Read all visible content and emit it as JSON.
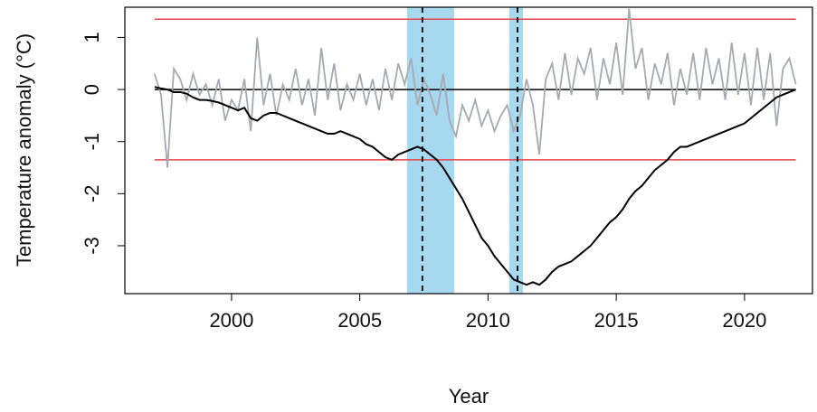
{
  "chart_data": {
    "type": "line",
    "x_label": "Year",
    "y_label": "Temperature anomaly (°C)",
    "xlim": [
      1995.84,
      2022.65
    ],
    "ylim": [
      -3.92,
      1.58
    ],
    "xticks": [
      2000,
      2005,
      2010,
      2015,
      2020
    ],
    "yticks": [
      -3,
      -2,
      -1,
      0,
      1
    ],
    "x": [
      1997,
      1997.25,
      1997.5,
      1997.75,
      1998,
      1998.25,
      1998.5,
      1998.75,
      1999,
      1999.25,
      1999.5,
      1999.75,
      2000,
      2000.25,
      2000.5,
      2000.75,
      2001,
      2001.25,
      2001.5,
      2001.75,
      2002,
      2002.25,
      2002.5,
      2002.75,
      2003,
      2003.25,
      2003.5,
      2003.75,
      2004,
      2004.25,
      2004.5,
      2004.75,
      2005,
      2005.25,
      2005.5,
      2005.75,
      2006,
      2006.25,
      2006.5,
      2006.75,
      2007,
      2007.25,
      2007.5,
      2007.75,
      2008,
      2008.25,
      2008.5,
      2008.75,
      2009,
      2009.25,
      2009.5,
      2009.75,
      2010,
      2010.25,
      2010.5,
      2010.75,
      2011,
      2011.25,
      2011.5,
      2011.75,
      2012,
      2012.25,
      2012.5,
      2012.75,
      2013,
      2013.25,
      2013.5,
      2013.75,
      2014,
      2014.25,
      2014.5,
      2014.75,
      2015,
      2015.25,
      2015.5,
      2015.75,
      2016,
      2016.25,
      2016.5,
      2016.75,
      2017,
      2017.25,
      2017.5,
      2017.75,
      2018,
      2018.25,
      2018.5,
      2018.75,
      2019,
      2019.25,
      2019.5,
      2019.75,
      2020,
      2020.25,
      2020.5,
      2020.75,
      2021,
      2021.25,
      2021.5,
      2021.75,
      2022
    ],
    "spans": [
      {
        "start": 2006.84,
        "end": 2008.68,
        "color": "#a6d8f0"
      },
      {
        "start": 2010.83,
        "end": 2011.36,
        "color": "#a6d8f0"
      }
    ],
    "vlines": [
      {
        "value": 2007.44,
        "color": "#000000"
      },
      {
        "value": 2011.15,
        "color": "#000000"
      }
    ],
    "hlines": [
      {
        "value": 1.35,
        "color": "#e8434a"
      },
      {
        "value": -1.35,
        "color": "#e8434a"
      },
      {
        "value": 0,
        "color": "#000000"
      }
    ],
    "series": [
      {
        "color": "#a7a9b0",
        "values": [
          0.3,
          -0.1,
          -1.5,
          0.4,
          0.2,
          -0.2,
          0.3,
          -0.1,
          0.1,
          -0.3,
          0.2,
          -0.6,
          -0.2,
          -0.4,
          0.2,
          -0.8,
          1.0,
          -0.3,
          0.3,
          -0.5,
          0.1,
          -0.2,
          0.4,
          -0.3,
          0.2,
          -0.5,
          0.8,
          -0.2,
          0.5,
          -0.4,
          0.1,
          -0.2,
          0.3,
          -0.3,
          0.2,
          -0.4,
          0.4,
          -0.2,
          0.5,
          0.1,
          0.6,
          -0.3,
          0.2,
          -0.1,
          -0.5,
          0.3,
          -0.6,
          -0.9,
          -0.3,
          -0.6,
          -0.2,
          -0.7,
          -0.4,
          -0.8,
          -0.5,
          -0.3,
          -0.8,
          -0.5,
          0.2,
          -0.3,
          -1.25,
          0.2,
          0.5,
          -0.2,
          0.7,
          -0.1,
          0.6,
          0.3,
          0.8,
          -0.2,
          0.6,
          0.1,
          0.9,
          -0.1,
          1.55,
          0.4,
          0.8,
          -0.2,
          0.5,
          0.1,
          0.7,
          -0.3,
          0.4,
          -0.1,
          0.7,
          -0.2,
          0.8,
          0.1,
          0.6,
          -0.2,
          0.9,
          -0.1,
          0.7,
          -0.3,
          0.8,
          -0.2,
          0.7,
          -0.7,
          0.4,
          0.6,
          0.1
        ]
      },
      {
        "color": "#000000",
        "values": [
          0.05,
          0.02,
          0.0,
          -0.05,
          -0.05,
          -0.08,
          -0.15,
          -0.2,
          -0.2,
          -0.22,
          -0.25,
          -0.3,
          -0.35,
          -0.4,
          -0.35,
          -0.55,
          -0.6,
          -0.5,
          -0.45,
          -0.45,
          -0.5,
          -0.55,
          -0.6,
          -0.65,
          -0.7,
          -0.75,
          -0.8,
          -0.85,
          -0.85,
          -0.8,
          -0.85,
          -0.9,
          -0.95,
          -1.05,
          -1.1,
          -1.2,
          -1.3,
          -1.35,
          -1.25,
          -1.2,
          -1.15,
          -1.1,
          -1.15,
          -1.25,
          -1.35,
          -1.5,
          -1.7,
          -1.9,
          -2.1,
          -2.35,
          -2.6,
          -2.85,
          -3.0,
          -3.2,
          -3.35,
          -3.5,
          -3.65,
          -3.7,
          -3.75,
          -3.7,
          -3.75,
          -3.65,
          -3.5,
          -3.4,
          -3.35,
          -3.3,
          -3.2,
          -3.1,
          -3.0,
          -2.85,
          -2.7,
          -2.55,
          -2.45,
          -2.3,
          -2.1,
          -1.95,
          -1.85,
          -1.7,
          -1.55,
          -1.45,
          -1.35,
          -1.2,
          -1.1,
          -1.1,
          -1.05,
          -1.0,
          -0.95,
          -0.9,
          -0.85,
          -0.8,
          -0.75,
          -0.7,
          -0.65,
          -0.55,
          -0.45,
          -0.35,
          -0.25,
          -0.15,
          -0.1,
          -0.05,
          0.0
        ]
      }
    ]
  }
}
